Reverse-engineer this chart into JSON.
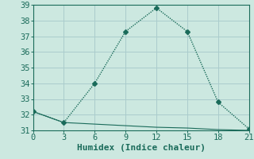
{
  "x_line1": [
    0,
    3,
    6,
    9,
    12,
    15,
    18,
    21
  ],
  "y_line1": [
    32.2,
    31.5,
    34.0,
    37.3,
    38.8,
    37.3,
    32.8,
    31.1
  ],
  "x_line2": [
    0,
    3,
    6,
    9,
    12,
    15,
    18,
    21
  ],
  "y_line2": [
    32.2,
    31.5,
    31.4,
    31.3,
    31.2,
    31.15,
    31.05,
    31.0
  ],
  "xlabel": "Humidex (Indice chaleur)",
  "ylim": [
    31,
    39
  ],
  "xlim": [
    0,
    21
  ],
  "yticks": [
    31,
    32,
    33,
    34,
    35,
    36,
    37,
    38,
    39
  ],
  "xticks": [
    0,
    3,
    6,
    9,
    12,
    15,
    18,
    21
  ],
  "line_color": "#1a6b5a",
  "bg_color": "#cce8e0",
  "grid_color": "#aacccc",
  "marker": "D",
  "marker_size": 3,
  "xlabel_fontsize": 8,
  "tick_fontsize": 7.5
}
